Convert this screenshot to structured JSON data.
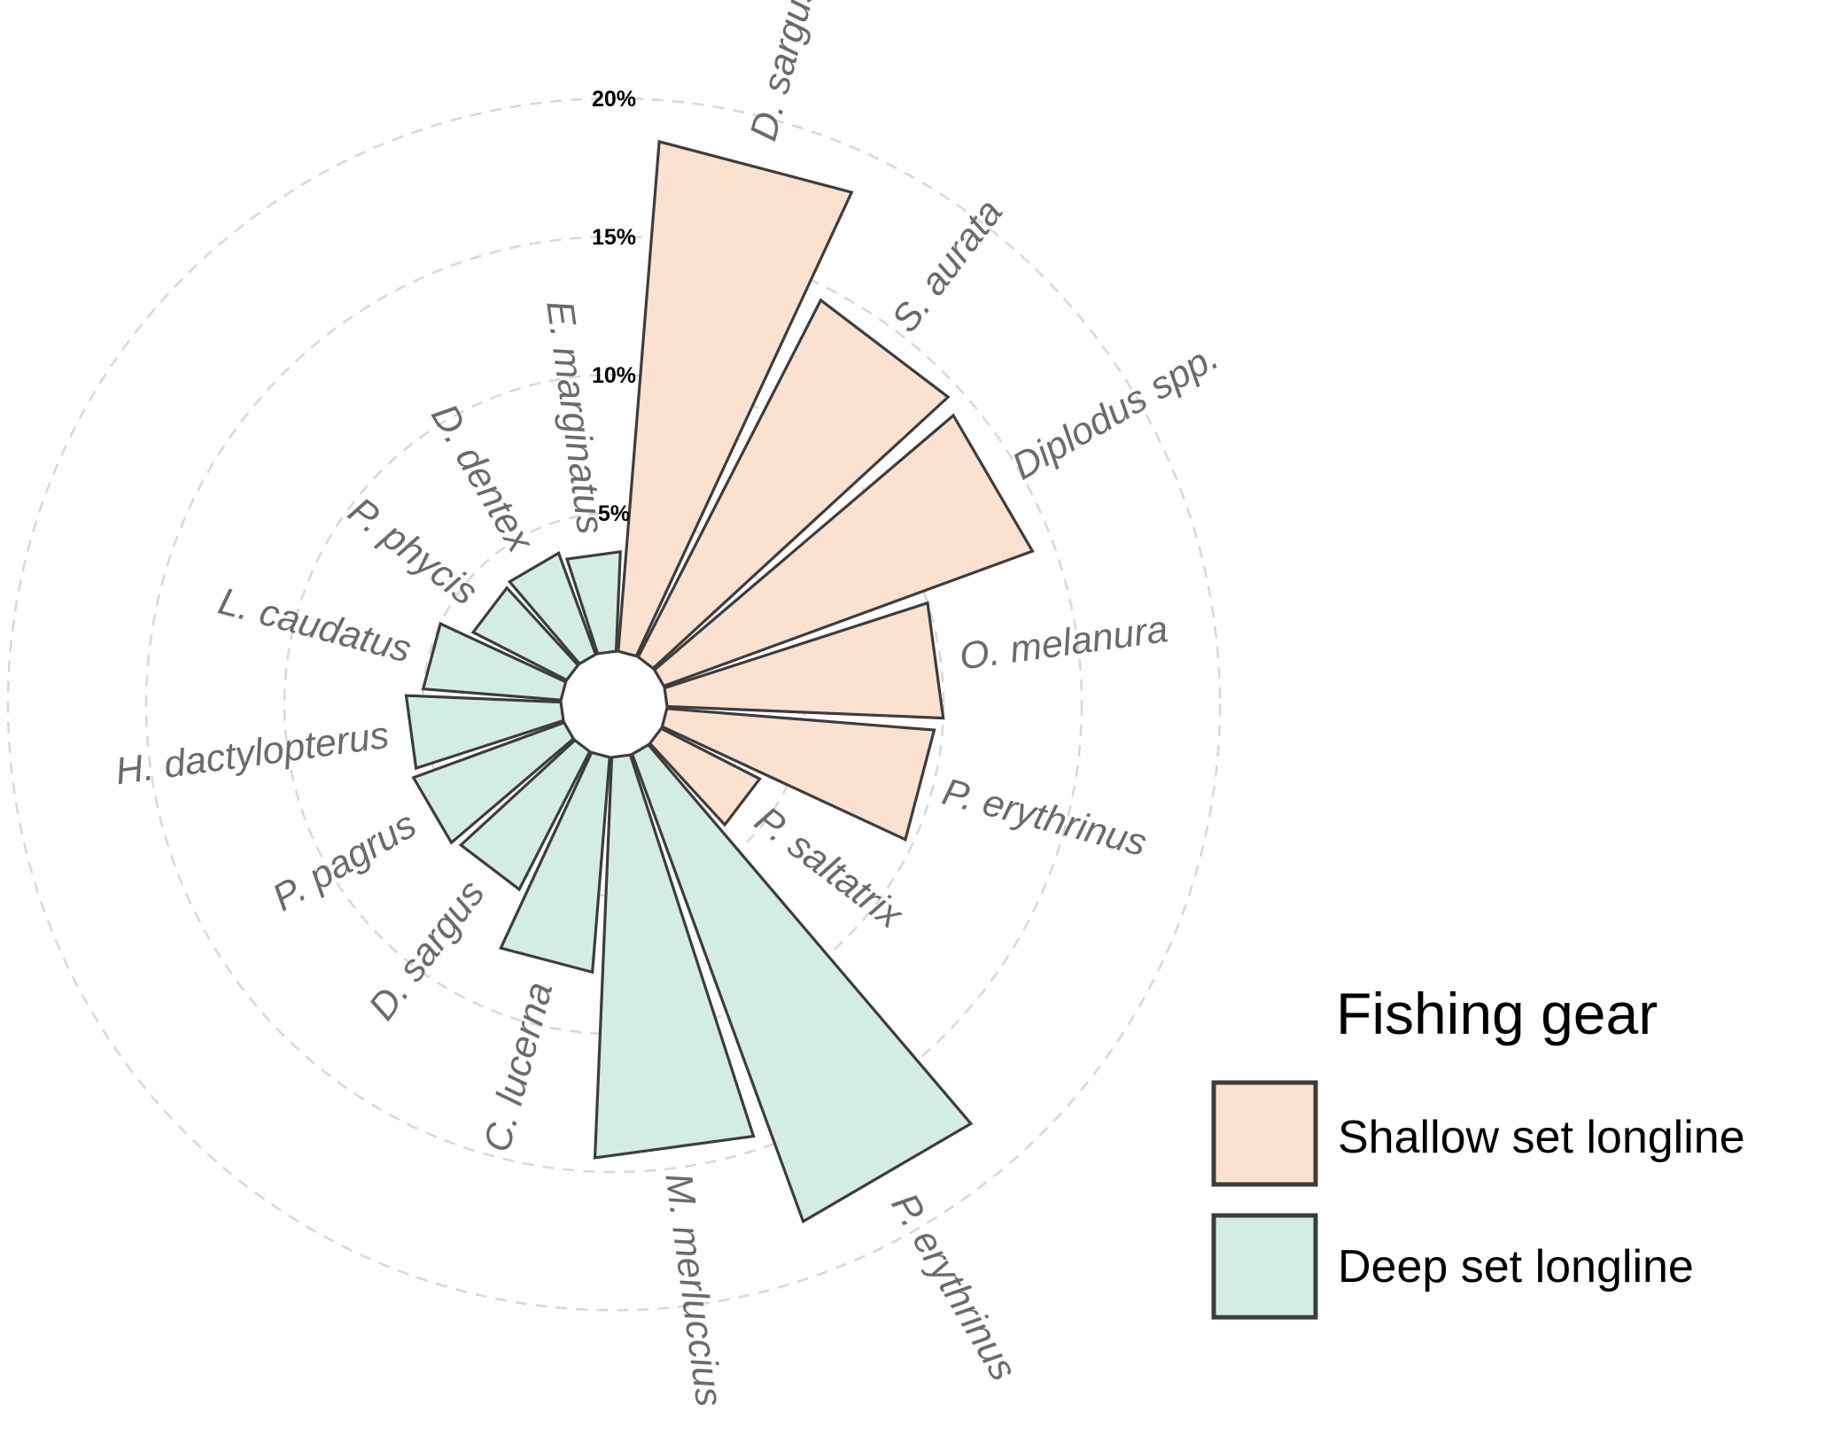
{
  "chart_data": {
    "type": "bar",
    "coordinate_system": "polar",
    "rlim": [
      0,
      20
    ],
    "radial_ticks": [
      {
        "value": 5,
        "label": "5%"
      },
      {
        "value": 10,
        "label": "10%"
      },
      {
        "value": 15,
        "label": "15%"
      },
      {
        "value": 20,
        "label": "20%"
      }
    ],
    "grid": true,
    "legend": {
      "title": "Fishing gear",
      "position": "bottom-right",
      "entries": [
        {
          "label": "Shallow set longline",
          "color": "#fbe1d0"
        },
        {
          "label": "Deep set longline",
          "color": "#d3ede3"
        }
      ]
    },
    "series": [
      {
        "name": "Shallow set longline",
        "color": "#fbe1d0",
        "categories": [
          "D. sargus",
          "S. aurata",
          "Diplodus spp.",
          "O. melanura",
          "P. erythrinus",
          "P. saltatrix"
        ],
        "values": [
          18.5,
          14.5,
          14.2,
          10.0,
          9.7,
          4.0
        ]
      },
      {
        "name": "Deep set longline",
        "color": "#d3ede3",
        "categories": [
          "P. erythrinus",
          "M. merluccius",
          "C. lucerna",
          "D. sargus",
          "P. pagrus",
          "H. dactylopterus",
          "L. caudatus",
          "P. phycis",
          "D. dentex",
          "E. marginatus"
        ],
        "values": [
          18.0,
          14.5,
          7.8,
          5.6,
          5.8,
          5.6,
          5.0,
          3.8,
          3.9,
          3.6
        ]
      }
    ]
  }
}
